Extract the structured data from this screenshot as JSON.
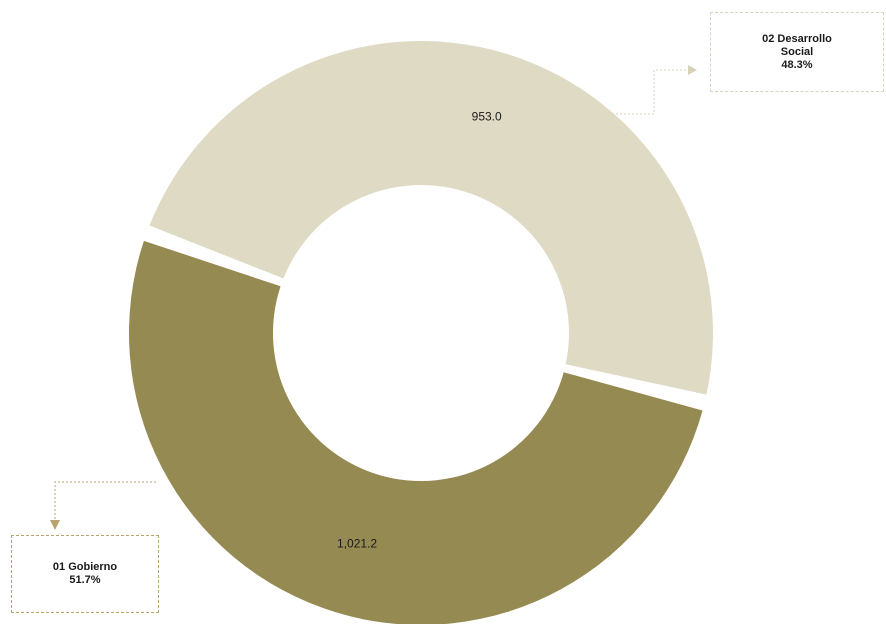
{
  "chart_data": {
    "type": "pie",
    "donut": true,
    "slices": [
      {
        "label": "02 Desarrollo Social",
        "label_lines": [
          "02 Desarrollo",
          "Social"
        ],
        "value": 953.0,
        "value_label": "953.0",
        "percent_label": "48.3%",
        "color": "#dfdac3"
      },
      {
        "label": "01 Gobierno",
        "label_lines": [
          "01 Gobierno"
        ],
        "value": 1021.2,
        "value_label": "1,021.2",
        "percent_label": "51.7%",
        "color": "#958a52"
      }
    ],
    "legend": "callouts",
    "callout_colors": {
      "social_border": "#d8d2b8",
      "gobierno_border": "#b9a46e",
      "leader_social": "#d8d2b8",
      "leader_gobierno": "#b9a46e"
    }
  }
}
